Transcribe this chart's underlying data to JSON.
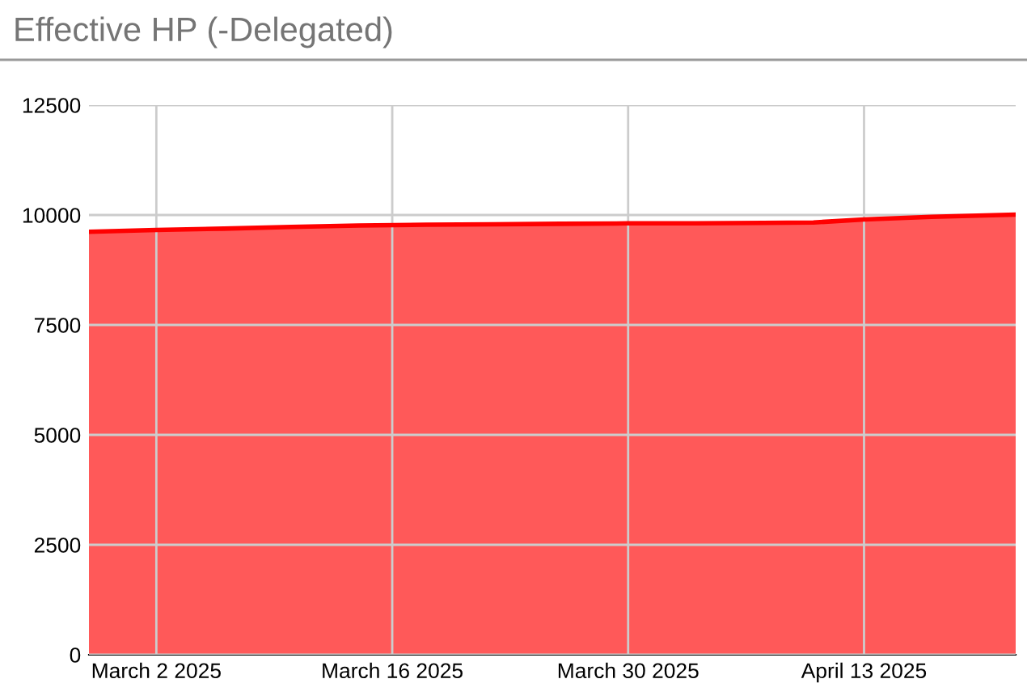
{
  "chart_data": {
    "type": "area",
    "title": "Effective HP (-Delegated)",
    "x": [
      "2025-02-26",
      "2025-03-02",
      "2025-03-06",
      "2025-03-10",
      "2025-03-14",
      "2025-03-18",
      "2025-03-22",
      "2025-03-26",
      "2025-03-30",
      "2025-04-03",
      "2025-04-07",
      "2025-04-10",
      "2025-04-13",
      "2025-04-17",
      "2025-04-22"
    ],
    "series": [
      {
        "color": "#ff0000",
        "values": [
          9620,
          9660,
          9690,
          9730,
          9760,
          9780,
          9790,
          9800,
          9810,
          9810,
          9820,
          9830,
          9900,
          9960,
          10010
        ]
      }
    ],
    "xlim": [
      "2025-02-26",
      "2025-04-22"
    ],
    "xticks": [
      {
        "value": "2025-03-02",
        "label": "March 2 2025"
      },
      {
        "value": "2025-03-16",
        "label": "March 16 2025"
      },
      {
        "value": "2025-03-30",
        "label": "March 30 2025"
      },
      {
        "value": "2025-04-13",
        "label": "April 13 2025"
      }
    ],
    "ylim": [
      0,
      12500
    ],
    "yticks": [
      0,
      2500,
      5000,
      7500,
      10000,
      12500
    ],
    "grid": true,
    "legend": false
  }
}
